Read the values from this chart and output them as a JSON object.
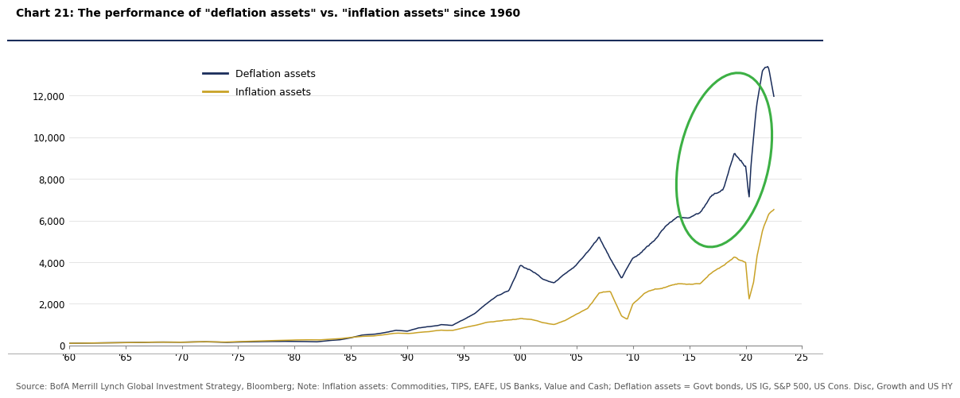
{
  "title": "Chart 21: The performance of \"deflation assets\" vs. \"inflation assets\" since 1960",
  "source_text": "Source: BofA Merrill Lynch Global Investment Strategy, Bloomberg; Note: Inflation assets: Commodities, TIPS, EAFE, US Banks, Value and Cash; Deflation assets = Govt bonds, US IG, S&P 500, US Cons. Disc, Growth and US HY",
  "deflation_color": "#1a2d5a",
  "inflation_color": "#c9a227",
  "ellipse_color": "#3cb044",
  "legend_deflation": "Deflation assets",
  "legend_inflation": "Inflation assets",
  "xlim": [
    1960,
    2025
  ],
  "ylim": [
    0,
    14000
  ],
  "xticks": [
    1960,
    1965,
    1970,
    1975,
    1980,
    1985,
    1990,
    1995,
    2000,
    2005,
    2010,
    2015,
    2020,
    2025
  ],
  "xtick_labels": [
    "'60",
    "'65",
    "'70",
    "'75",
    "'80",
    "'85",
    "'90",
    "'95",
    "'00",
    "'05",
    "'10",
    "'15",
    "'20",
    "'25"
  ],
  "yticks": [
    0,
    2000,
    4000,
    6000,
    8000,
    10000,
    12000
  ],
  "title_fontsize": 10,
  "source_fontsize": 7.5,
  "axis_fontsize": 8.5,
  "legend_fontsize": 9,
  "deflation_keypoints": [
    [
      1960,
      100
    ],
    [
      1965,
      130
    ],
    [
      1968,
      160
    ],
    [
      1970,
      155
    ],
    [
      1972,
      175
    ],
    [
      1974,
      145
    ],
    [
      1975,
      160
    ],
    [
      1978,
      190
    ],
    [
      1980,
      195
    ],
    [
      1981,
      185
    ],
    [
      1982,
      175
    ],
    [
      1983,
      230
    ],
    [
      1984,
      270
    ],
    [
      1985,
      360
    ],
    [
      1986,
      500
    ],
    [
      1987,
      530
    ],
    [
      1988,
      610
    ],
    [
      1989,
      730
    ],
    [
      1990,
      680
    ],
    [
      1991,
      830
    ],
    [
      1992,
      900
    ],
    [
      1993,
      1000
    ],
    [
      1994,
      960
    ],
    [
      1995,
      1250
    ],
    [
      1996,
      1550
    ],
    [
      1997,
      2000
    ],
    [
      1998,
      2400
    ],
    [
      1999,
      2600
    ],
    [
      2000,
      3850
    ],
    [
      2001,
      3600
    ],
    [
      2002,
      3200
    ],
    [
      2003,
      3000
    ],
    [
      2004,
      3400
    ],
    [
      2005,
      3900
    ],
    [
      2006,
      4500
    ],
    [
      2007,
      5200
    ],
    [
      2008,
      4200
    ],
    [
      2009,
      3200
    ],
    [
      2010,
      4200
    ],
    [
      2011,
      4600
    ],
    [
      2012,
      5100
    ],
    [
      2013,
      5800
    ],
    [
      2014,
      6200
    ],
    [
      2015,
      6100
    ],
    [
      2016,
      6400
    ],
    [
      2017,
      7200
    ],
    [
      2018,
      7500
    ],
    [
      2019,
      9200
    ],
    [
      2020.0,
      8600
    ],
    [
      2020.3,
      7000
    ],
    [
      2020.5,
      8800
    ],
    [
      2021.0,
      11500
    ],
    [
      2021.5,
      13200
    ],
    [
      2022.0,
      13500
    ],
    [
      2022.5,
      12000
    ]
  ],
  "inflation_keypoints": [
    [
      1960,
      100
    ],
    [
      1965,
      130
    ],
    [
      1968,
      160
    ],
    [
      1970,
      150
    ],
    [
      1972,
      180
    ],
    [
      1974,
      160
    ],
    [
      1975,
      180
    ],
    [
      1978,
      230
    ],
    [
      1980,
      260
    ],
    [
      1981,
      270
    ],
    [
      1982,
      260
    ],
    [
      1983,
      290
    ],
    [
      1984,
      320
    ],
    [
      1985,
      380
    ],
    [
      1986,
      430
    ],
    [
      1987,
      460
    ],
    [
      1988,
      520
    ],
    [
      1989,
      600
    ],
    [
      1990,
      570
    ],
    [
      1991,
      620
    ],
    [
      1992,
      670
    ],
    [
      1993,
      740
    ],
    [
      1994,
      720
    ],
    [
      1995,
      840
    ],
    [
      1996,
      950
    ],
    [
      1997,
      1100
    ],
    [
      1998,
      1150
    ],
    [
      1999,
      1200
    ],
    [
      2000,
      1300
    ],
    [
      2001,
      1250
    ],
    [
      2002,
      1100
    ],
    [
      2003,
      1000
    ],
    [
      2004,
      1200
    ],
    [
      2005,
      1500
    ],
    [
      2006,
      1800
    ],
    [
      2007,
      2500
    ],
    [
      2008,
      2600
    ],
    [
      2009,
      1400
    ],
    [
      2009.5,
      1250
    ],
    [
      2010,
      2000
    ],
    [
      2011,
      2500
    ],
    [
      2012,
      2700
    ],
    [
      2013,
      2800
    ],
    [
      2014,
      3000
    ],
    [
      2015,
      2900
    ],
    [
      2016,
      3000
    ],
    [
      2017,
      3500
    ],
    [
      2018,
      3800
    ],
    [
      2019,
      4200
    ],
    [
      2020.0,
      4000
    ],
    [
      2020.3,
      2200
    ],
    [
      2020.7,
      3000
    ],
    [
      2021.0,
      4200
    ],
    [
      2021.5,
      5500
    ],
    [
      2022.0,
      6300
    ],
    [
      2022.5,
      6500
    ]
  ]
}
